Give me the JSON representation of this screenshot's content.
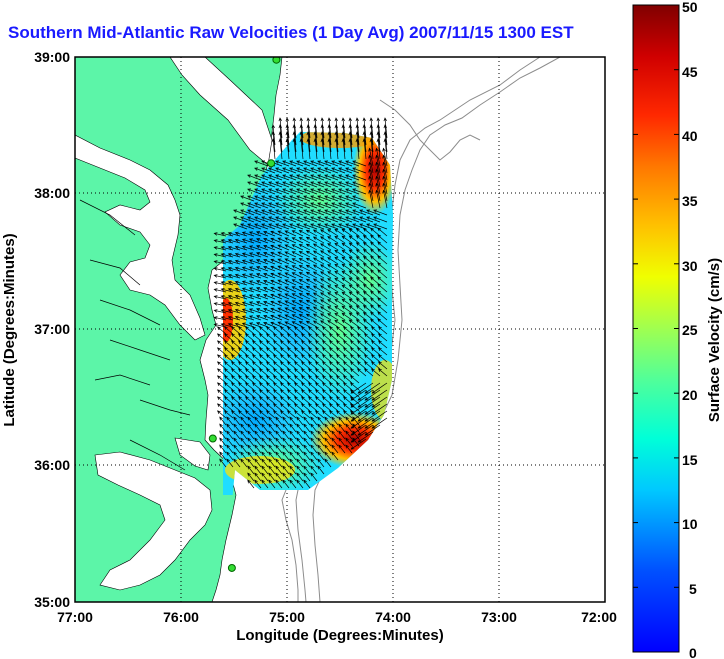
{
  "title": "Southern Mid-Atlantic Raw Velocities (1 Day Avg) 2007/11/15 1300 EST",
  "map": {
    "x_axis_label": "Longitude (Degrees:Minutes)",
    "y_axis_label": "Latitude (Degrees:Minutes)",
    "lon_ticks": [
      "77:00",
      "76:00",
      "75:00",
      "74:00",
      "73:00",
      "72:00"
    ],
    "lat_ticks": [
      "39:00",
      "38:00",
      "37:00",
      "36:00",
      "35:00"
    ],
    "lon_range": [
      -77,
      -72
    ],
    "lat_range": [
      35,
      39
    ],
    "grid": true,
    "grid_style": "dotted"
  },
  "colorbar": {
    "label": "Surface Velocity (cm/s)",
    "ticks": [
      "50",
      "45",
      "40",
      "35",
      "30",
      "25",
      "20",
      "15",
      "10",
      "5",
      "0"
    ],
    "range": [
      0,
      50
    ],
    "colormap": "jet"
  },
  "colors": {
    "land": "#5cf5a8",
    "water": "#ffffff",
    "coastline": "#000000",
    "bathymetry": "#8c8c8c",
    "title_text": "#1a1aff",
    "station_marker": "#33dd33"
  },
  "stations": [
    {
      "lon": -75.1,
      "lat": 38.98
    },
    {
      "lon": -75.15,
      "lat": 38.22
    },
    {
      "lon": -75.7,
      "lat": 36.2
    },
    {
      "lon": -75.52,
      "lat": 35.25
    }
  ]
}
